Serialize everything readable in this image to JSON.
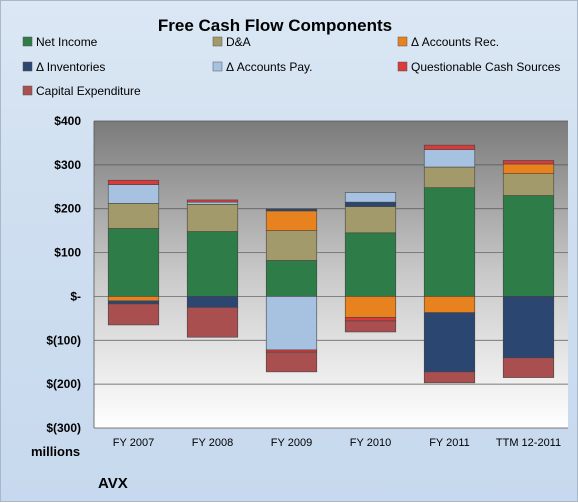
{
  "chart_data": {
    "type": "bar",
    "stacked": true,
    "title": "Free Cash Flow Components",
    "unit_label": "millions",
    "company": "AVX",
    "ylim": [
      -300,
      400
    ],
    "yticks": [
      400,
      300,
      200,
      100,
      0,
      -100,
      -200,
      -300
    ],
    "ytick_labels": [
      "$400",
      "$300",
      "$200",
      "$100",
      "$-",
      "$(100)",
      "$(200)",
      "$(300)"
    ],
    "grid": true,
    "legend_position": "top",
    "categories": [
      "FY 2007",
      "FY 2008",
      "FY 2009",
      "FY 2010",
      "FY 2011",
      "TTM 12-2011"
    ],
    "series": [
      {
        "name": "Net Income",
        "color": "#2e7d48",
        "values": [
          155,
          148,
          82,
          145,
          248,
          230
        ]
      },
      {
        "name": "D&A",
        "color": "#a29a6a",
        "values": [
          57,
          62,
          68,
          60,
          47,
          50
        ]
      },
      {
        "name": "Δ Accounts Rec.",
        "color": "#e8821e",
        "values": [
          -10,
          0,
          45,
          -48,
          -37,
          22
        ]
      },
      {
        "name": "Δ Inventories",
        "color": "#2b4670",
        "values": [
          -7,
          -25,
          5,
          10,
          -135,
          -140
        ]
      },
      {
        "name": "Δ Accounts Pay.",
        "color": "#a7c1e0",
        "values": [
          43,
          5,
          -122,
          22,
          40,
          0
        ]
      },
      {
        "name": "Questionable Cash Sources",
        "color": "#d93a3a",
        "values": [
          10,
          5,
          -5,
          -8,
          10,
          8
        ]
      },
      {
        "name": "Capital Expenditure",
        "color": "#a94f4f",
        "values": [
          -48,
          -68,
          -45,
          -25,
          -25,
          -45
        ]
      }
    ]
  }
}
